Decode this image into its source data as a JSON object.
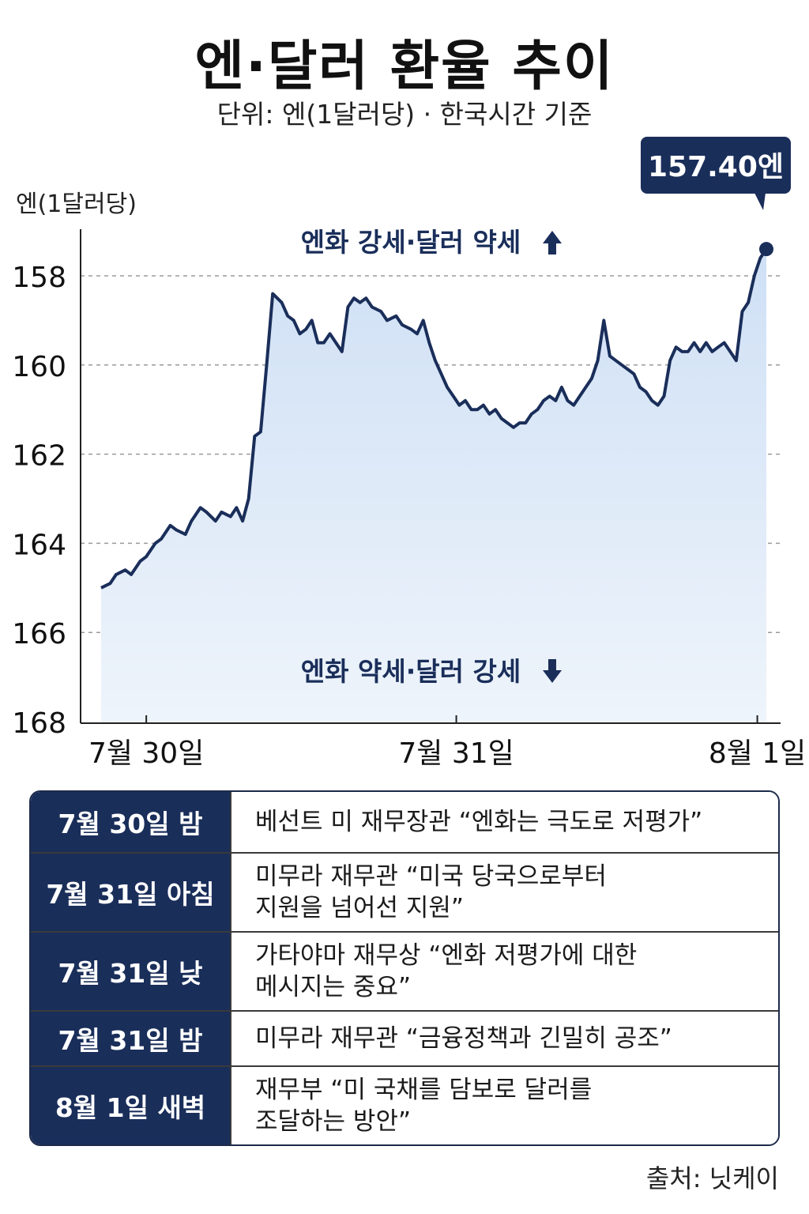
{
  "header": {
    "title": "엔·달러 환율 추이",
    "subtitle": "단위: 엔(1달러당) · 한국시간 기준"
  },
  "chart_data": {
    "type": "area",
    "ylabel": "엔(1달러당)",
    "y_inverted": true,
    "ylim": [
      157,
      168
    ],
    "yticks": [
      "158",
      "160",
      "162",
      "164",
      "166",
      "168"
    ],
    "ytick_values": [
      158,
      160,
      162,
      164,
      166,
      168
    ],
    "xticks": [
      "7월 30일",
      "7월 31일",
      "8월 1일"
    ],
    "xtick_positions": [
      0.15,
      1.18,
      2.18
    ],
    "xlim": [
      0,
      2.4
    ],
    "grid": "horizontal-dashed",
    "colors": {
      "line": "#1a2e5a",
      "fill": "#dce8f7",
      "callout": "#1a2e5a"
    },
    "series": [
      {
        "values": [
          [
            0.0,
            165.0
          ],
          [
            0.03,
            164.9
          ],
          [
            0.05,
            164.7
          ],
          [
            0.08,
            164.6
          ],
          [
            0.1,
            164.7
          ],
          [
            0.13,
            164.4
          ],
          [
            0.15,
            164.3
          ],
          [
            0.18,
            164.0
          ],
          [
            0.2,
            163.9
          ],
          [
            0.23,
            163.6
          ],
          [
            0.25,
            163.7
          ],
          [
            0.28,
            163.8
          ],
          [
            0.3,
            163.5
          ],
          [
            0.33,
            163.2
          ],
          [
            0.35,
            163.3
          ],
          [
            0.38,
            163.5
          ],
          [
            0.4,
            163.3
          ],
          [
            0.43,
            163.4
          ],
          [
            0.45,
            163.2
          ],
          [
            0.47,
            163.5
          ],
          [
            0.49,
            163.0
          ],
          [
            0.51,
            161.6
          ],
          [
            0.53,
            161.5
          ],
          [
            0.55,
            160.0
          ],
          [
            0.57,
            158.4
          ],
          [
            0.6,
            158.6
          ],
          [
            0.62,
            158.9
          ],
          [
            0.64,
            159.0
          ],
          [
            0.66,
            159.3
          ],
          [
            0.68,
            159.2
          ],
          [
            0.7,
            159.0
          ],
          [
            0.72,
            159.5
          ],
          [
            0.74,
            159.5
          ],
          [
            0.76,
            159.3
          ],
          [
            0.78,
            159.5
          ],
          [
            0.8,
            159.7
          ],
          [
            0.82,
            158.7
          ],
          [
            0.84,
            158.5
          ],
          [
            0.86,
            158.6
          ],
          [
            0.88,
            158.5
          ],
          [
            0.9,
            158.7
          ],
          [
            0.93,
            158.8
          ],
          [
            0.95,
            159.0
          ],
          [
            0.98,
            158.9
          ],
          [
            1.0,
            159.1
          ],
          [
            1.03,
            159.2
          ],
          [
            1.05,
            159.3
          ],
          [
            1.07,
            159.0
          ],
          [
            1.09,
            159.5
          ],
          [
            1.11,
            159.9
          ],
          [
            1.13,
            160.2
          ],
          [
            1.15,
            160.5
          ],
          [
            1.17,
            160.7
          ],
          [
            1.19,
            160.9
          ],
          [
            1.21,
            160.8
          ],
          [
            1.23,
            161.0
          ],
          [
            1.25,
            161.0
          ],
          [
            1.27,
            160.9
          ],
          [
            1.29,
            161.1
          ],
          [
            1.31,
            161.0
          ],
          [
            1.33,
            161.2
          ],
          [
            1.35,
            161.3
          ],
          [
            1.37,
            161.4
          ],
          [
            1.39,
            161.3
          ],
          [
            1.41,
            161.3
          ],
          [
            1.43,
            161.1
          ],
          [
            1.45,
            161.0
          ],
          [
            1.47,
            160.8
          ],
          [
            1.49,
            160.7
          ],
          [
            1.51,
            160.8
          ],
          [
            1.53,
            160.5
          ],
          [
            1.55,
            160.8
          ],
          [
            1.57,
            160.9
          ],
          [
            1.59,
            160.7
          ],
          [
            1.61,
            160.5
          ],
          [
            1.63,
            160.3
          ],
          [
            1.65,
            159.9
          ],
          [
            1.67,
            159.0
          ],
          [
            1.69,
            159.8
          ],
          [
            1.71,
            159.9
          ],
          [
            1.73,
            160.0
          ],
          [
            1.75,
            160.1
          ],
          [
            1.77,
            160.2
          ],
          [
            1.79,
            160.5
          ],
          [
            1.81,
            160.6
          ],
          [
            1.83,
            160.8
          ],
          [
            1.85,
            160.9
          ],
          [
            1.87,
            160.7
          ],
          [
            1.89,
            159.9
          ],
          [
            1.91,
            159.6
          ],
          [
            1.93,
            159.7
          ],
          [
            1.95,
            159.7
          ],
          [
            1.97,
            159.5
          ],
          [
            1.99,
            159.7
          ],
          [
            2.01,
            159.5
          ],
          [
            2.03,
            159.7
          ],
          [
            2.05,
            159.6
          ],
          [
            2.07,
            159.5
          ],
          [
            2.09,
            159.7
          ],
          [
            2.11,
            159.9
          ],
          [
            2.13,
            158.8
          ],
          [
            2.15,
            158.6
          ],
          [
            2.17,
            158.0
          ],
          [
            2.19,
            157.6
          ],
          [
            2.21,
            157.4
          ]
        ]
      }
    ],
    "annotations": {
      "top": "엔화 강세·달러 약세",
      "bottom": "엔화 약세·달러 강세",
      "callout": "157.40엔"
    }
  },
  "events": [
    {
      "date": "7월 30일 밤",
      "lines": [
        "베선트 미 재무장관 “엔화는 극도로 저평가”"
      ]
    },
    {
      "date": "7월 31일 아침",
      "lines": [
        "미무라 재무관 “미국 당국으로부터",
        "지원을 넘어선 지원”"
      ]
    },
    {
      "date": "7월 31일 낮",
      "lines": [
        "가타야마 재무상 “엔화 저평가에 대한",
        "메시지는 중요”"
      ]
    },
    {
      "date": "7월 31일 밤",
      "lines": [
        "미무라 재무관 “금융정책과 긴밀히 공조”"
      ]
    },
    {
      "date": "8월 1일 새벽",
      "lines": [
        "재무부 “미 국채를 담보로 달러를",
        "조달하는 방안”"
      ]
    }
  ],
  "footer": {
    "source": "출처: 닛케이"
  }
}
